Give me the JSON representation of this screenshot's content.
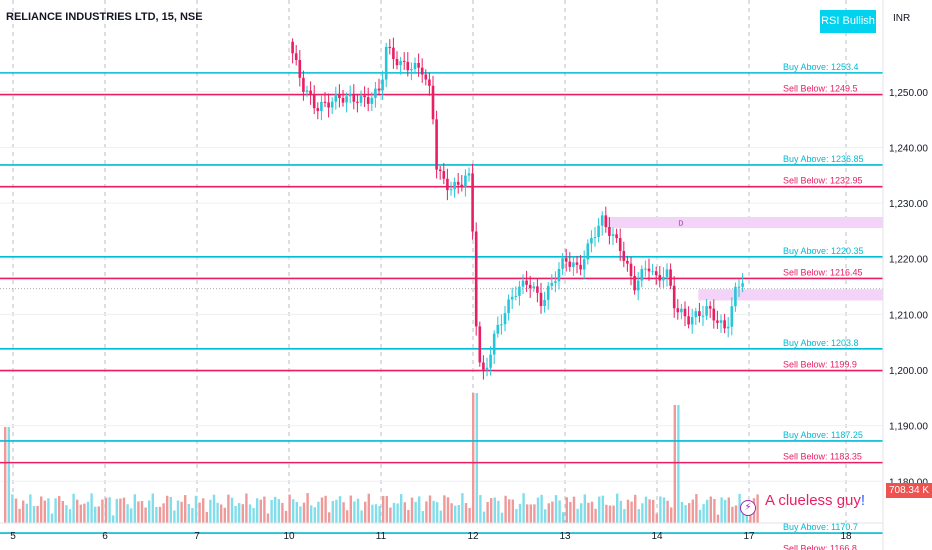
{
  "header": {
    "symbol_title": "RELIANCE INDUSTRIES LTD, 15, NSE",
    "badge": "RSI Bullish",
    "currency": "INR"
  },
  "volume_label": "708.34 K",
  "watermark": {
    "text": "A clueless guy",
    "mark": "!"
  },
  "colors": {
    "buy_line": "#00bcd4",
    "sell_line": "#e91e63",
    "candle_up": "#26c6da",
    "candle_down": "#e91e63",
    "zone": "#f3d3f7",
    "volume_up": "#80deea",
    "volume_down": "#ef9a9a",
    "grid": "#b8bcc6"
  },
  "chart_data": {
    "type": "candlestick",
    "title": "RELIANCE INDUSTRIES LTD, 15, NSE",
    "y_axis": {
      "ylim": [
        1172.5,
        1266.5
      ],
      "ticks": [
        1180,
        1190,
        1200,
        1210,
        1220,
        1230,
        1240,
        1250
      ],
      "tick_labels": [
        "1,180.00",
        "1,190.00",
        "1,200.00",
        "1,210.00",
        "1,220.00",
        "1,230.00",
        "1,240.00",
        "1,250.00"
      ],
      "position": "right"
    },
    "x_axis": {
      "tick_labels": [
        "5",
        "6",
        "7",
        "10",
        "11",
        "12",
        "13",
        "14",
        "17",
        "18"
      ],
      "grid": "dashed vertical at each day"
    },
    "levels": [
      {
        "label": "Buy Above: 1253.4",
        "value": 1253.4,
        "kind": "buy"
      },
      {
        "label": "Sell Below: 1249.5",
        "value": 1249.5,
        "kind": "sell"
      },
      {
        "label": "Buy Above: 1236.85",
        "value": 1236.85,
        "kind": "buy"
      },
      {
        "label": "Sell Below: 1232.95",
        "value": 1232.95,
        "kind": "sell"
      },
      {
        "label": "Buy Above: 1220.35",
        "value": 1220.35,
        "kind": "buy"
      },
      {
        "label": "Sell Below: 1216.45",
        "value": 1216.45,
        "kind": "sell"
      },
      {
        "label": "Buy Above: 1203.8",
        "value": 1203.8,
        "kind": "buy"
      },
      {
        "label": "Sell Below: 1199.9",
        "value": 1199.9,
        "kind": "sell"
      },
      {
        "label": "Buy Above: 1187.25",
        "value": 1187.25,
        "kind": "buy"
      },
      {
        "label": "Sell Below: 1183.35",
        "value": 1183.35,
        "kind": "sell"
      },
      {
        "label": "Buy Above: 1170.7",
        "value": 1170.7,
        "kind": "buy"
      },
      {
        "label": "Sell Below: 1166.8",
        "value": 1166.8,
        "kind": "sell"
      }
    ],
    "zones": [
      {
        "label": "D",
        "from_day": "13",
        "y_low": 1225.5,
        "y_high": 1227.5
      },
      {
        "label": "",
        "from_day": "14",
        "y_low": 1212.5,
        "y_high": 1214.5
      }
    ],
    "price_path": [
      {
        "day": "10",
        "t": 0.0,
        "p": 1259
      },
      {
        "day": "10",
        "t": 0.15,
        "p": 1251
      },
      {
        "day": "10",
        "t": 0.3,
        "p": 1247
      },
      {
        "day": "10",
        "t": 0.55,
        "p": 1249
      },
      {
        "day": "10",
        "t": 0.85,
        "p": 1248.5
      },
      {
        "day": "11",
        "t": 0.0,
        "p": 1250.5
      },
      {
        "day": "11",
        "t": 0.05,
        "p": 1258
      },
      {
        "day": "11",
        "t": 0.2,
        "p": 1255
      },
      {
        "day": "11",
        "t": 0.45,
        "p": 1254
      },
      {
        "day": "11",
        "t": 0.55,
        "p": 1249
      },
      {
        "day": "11",
        "t": 0.6,
        "p": 1237
      },
      {
        "day": "11",
        "t": 0.7,
        "p": 1233
      },
      {
        "day": "11",
        "t": 0.85,
        "p": 1233
      },
      {
        "day": "11",
        "t": 0.95,
        "p": 1236
      },
      {
        "day": "12",
        "t": 0.0,
        "p": 1224
      },
      {
        "day": "12",
        "t": 0.05,
        "p": 1202
      },
      {
        "day": "12",
        "t": 0.12,
        "p": 1199
      },
      {
        "day": "12",
        "t": 0.25,
        "p": 1207
      },
      {
        "day": "12",
        "t": 0.45,
        "p": 1214
      },
      {
        "day": "12",
        "t": 0.6,
        "p": 1216
      },
      {
        "day": "12",
        "t": 0.75,
        "p": 1212
      },
      {
        "day": "12",
        "t": 0.9,
        "p": 1217
      },
      {
        "day": "13",
        "t": 0.0,
        "p": 1220
      },
      {
        "day": "13",
        "t": 0.15,
        "p": 1218
      },
      {
        "day": "13",
        "t": 0.3,
        "p": 1224
      },
      {
        "day": "13",
        "t": 0.4,
        "p": 1227
      },
      {
        "day": "13",
        "t": 0.6,
        "p": 1222
      },
      {
        "day": "13",
        "t": 0.75,
        "p": 1215
      },
      {
        "day": "13",
        "t": 0.9,
        "p": 1219
      },
      {
        "day": "14",
        "t": 0.0,
        "p": 1216
      },
      {
        "day": "14",
        "t": 0.1,
        "p": 1218
      },
      {
        "day": "14",
        "t": 0.2,
        "p": 1211
      },
      {
        "day": "14",
        "t": 0.35,
        "p": 1209
      },
      {
        "day": "14",
        "t": 0.55,
        "p": 1211
      },
      {
        "day": "14",
        "t": 0.75,
        "p": 1207
      },
      {
        "day": "14",
        "t": 0.85,
        "p": 1214
      },
      {
        "day": "14",
        "t": 0.95,
        "p": 1217
      }
    ]
  }
}
